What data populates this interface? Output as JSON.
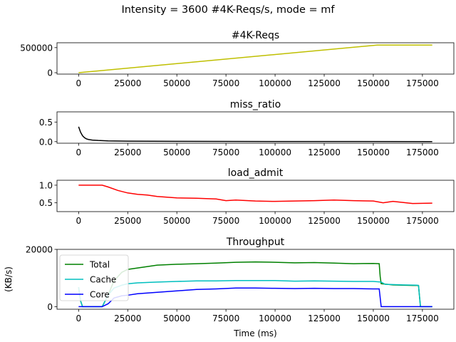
{
  "suptitle": "Intensity = 3600 #4K-Reqs/s, mode = mf",
  "chart_data": [
    {
      "type": "line",
      "title": "#4K-Reqs",
      "xlim": [
        -11000,
        191000
      ],
      "ylim": [
        -28000,
        597000
      ],
      "xticks": [
        0,
        25000,
        50000,
        75000,
        100000,
        125000,
        150000,
        175000
      ],
      "yticks": [
        0,
        500000
      ],
      "series": [
        {
          "color": "#bfbf00",
          "points": [
            [
              0,
              0
            ],
            [
              152000,
              551000
            ],
            [
              180000,
              551000
            ]
          ]
        }
      ]
    },
    {
      "type": "line",
      "title": "miss_ratio",
      "xlim": [
        -11000,
        191000
      ],
      "ylim": [
        -0.04,
        0.76
      ],
      "xticks": [
        0,
        25000,
        50000,
        75000,
        100000,
        125000,
        150000,
        175000
      ],
      "yticks": [
        0.0,
        0.5
      ],
      "series": [
        {
          "color": "#000000",
          "points": [
            [
              0,
              0.38
            ],
            [
              1000,
              0.24
            ],
            [
              2000,
              0.15
            ],
            [
              3000,
              0.1
            ],
            [
              4000,
              0.07
            ],
            [
              5000,
              0.055
            ],
            [
              7000,
              0.04
            ],
            [
              10000,
              0.03
            ],
            [
              15000,
              0.02
            ],
            [
              25000,
              0.012
            ],
            [
              50000,
              0.007
            ],
            [
              100000,
              0.004
            ],
            [
              180000,
              0.002
            ]
          ]
        }
      ]
    },
    {
      "type": "line",
      "title": "load_admit",
      "xlim": [
        -11000,
        191000
      ],
      "ylim": [
        0.25,
        1.14
      ],
      "xticks": [
        0,
        25000,
        50000,
        75000,
        100000,
        125000,
        150000,
        175000
      ],
      "yticks": [
        0.5,
        1.0
      ],
      "series": [
        {
          "color": "#ff0000",
          "points": [
            [
              0,
              1.0
            ],
            [
              12000,
              1.0
            ],
            [
              15000,
              0.95
            ],
            [
              20000,
              0.85
            ],
            [
              25000,
              0.78
            ],
            [
              30000,
              0.74
            ],
            [
              35000,
              0.72
            ],
            [
              40000,
              0.68
            ],
            [
              50000,
              0.64
            ],
            [
              60000,
              0.63
            ],
            [
              70000,
              0.61
            ],
            [
              75000,
              0.56
            ],
            [
              80000,
              0.58
            ],
            [
              90000,
              0.55
            ],
            [
              100000,
              0.54
            ],
            [
              110000,
              0.55
            ],
            [
              120000,
              0.56
            ],
            [
              130000,
              0.58
            ],
            [
              140000,
              0.56
            ],
            [
              150000,
              0.55
            ],
            [
              155000,
              0.5
            ],
            [
              160000,
              0.54
            ],
            [
              165000,
              0.51
            ],
            [
              170000,
              0.48
            ],
            [
              180000,
              0.49
            ]
          ]
        }
      ]
    },
    {
      "type": "line",
      "title": "Throughput",
      "xlabel": "Time (ms)",
      "ylabel": "(KB/s)",
      "xlim": [
        -11000,
        191000
      ],
      "ylim": [
        -900,
        20000
      ],
      "xticks": [
        0,
        25000,
        50000,
        75000,
        100000,
        125000,
        150000,
        175000
      ],
      "yticks": [
        0,
        20000
      ],
      "legend_position": "upper-left",
      "series": [
        {
          "name": "Total",
          "color": "#008000",
          "points": [
            [
              0,
              6800
            ],
            [
              1000,
              2000
            ],
            [
              2000,
              0
            ],
            [
              12000,
              0
            ],
            [
              15000,
              4000
            ],
            [
              18000,
              9000
            ],
            [
              22000,
              12000
            ],
            [
              25000,
              13000
            ],
            [
              30000,
              13500
            ],
            [
              35000,
              14000
            ],
            [
              40000,
              14500
            ],
            [
              50000,
              14800
            ],
            [
              60000,
              15000
            ],
            [
              70000,
              15200
            ],
            [
              80000,
              15500
            ],
            [
              90000,
              15600
            ],
            [
              100000,
              15500
            ],
            [
              110000,
              15300
            ],
            [
              120000,
              15400
            ],
            [
              130000,
              15200
            ],
            [
              140000,
              15000
            ],
            [
              150000,
              15100
            ],
            [
              153000,
              15000
            ],
            [
              153500,
              10500
            ],
            [
              154000,
              8000
            ],
            [
              160000,
              7600
            ],
            [
              170000,
              7400
            ],
            [
              173000,
              7400
            ],
            [
              174000,
              0
            ],
            [
              180000,
              0
            ]
          ]
        },
        {
          "name": "Cache",
          "color": "#00bfbf",
          "points": [
            [
              0,
              6800
            ],
            [
              1000,
              2000
            ],
            [
              2000,
              0
            ],
            [
              12000,
              0
            ],
            [
              15000,
              4000
            ],
            [
              18000,
              6500
            ],
            [
              22000,
              7500
            ],
            [
              25000,
              8000
            ],
            [
              30000,
              8300
            ],
            [
              40000,
              8600
            ],
            [
              50000,
              8800
            ],
            [
              60000,
              9000
            ],
            [
              70000,
              9000
            ],
            [
              80000,
              9100
            ],
            [
              90000,
              9100
            ],
            [
              100000,
              9100
            ],
            [
              110000,
              8900
            ],
            [
              120000,
              9000
            ],
            [
              130000,
              8900
            ],
            [
              140000,
              8800
            ],
            [
              150000,
              8800
            ],
            [
              154000,
              8600
            ],
            [
              156000,
              7800
            ],
            [
              165000,
              7600
            ],
            [
              172000,
              7500
            ],
            [
              173000,
              7400
            ],
            [
              174000,
              0
            ],
            [
              180000,
              0
            ]
          ]
        },
        {
          "name": "Core",
          "color": "#0000ff",
          "points": [
            [
              0,
              0
            ],
            [
              12000,
              0
            ],
            [
              15000,
              1000
            ],
            [
              18000,
              3000
            ],
            [
              22000,
              3800
            ],
            [
              25000,
              4000
            ],
            [
              30000,
              4500
            ],
            [
              40000,
              5000
            ],
            [
              50000,
              5500
            ],
            [
              60000,
              6000
            ],
            [
              70000,
              6200
            ],
            [
              80000,
              6500
            ],
            [
              90000,
              6500
            ],
            [
              100000,
              6400
            ],
            [
              110000,
              6300
            ],
            [
              120000,
              6400
            ],
            [
              130000,
              6300
            ],
            [
              140000,
              6300
            ],
            [
              150000,
              6200
            ],
            [
              153000,
              6200
            ],
            [
              154000,
              0
            ],
            [
              180000,
              0
            ]
          ]
        }
      ]
    }
  ]
}
